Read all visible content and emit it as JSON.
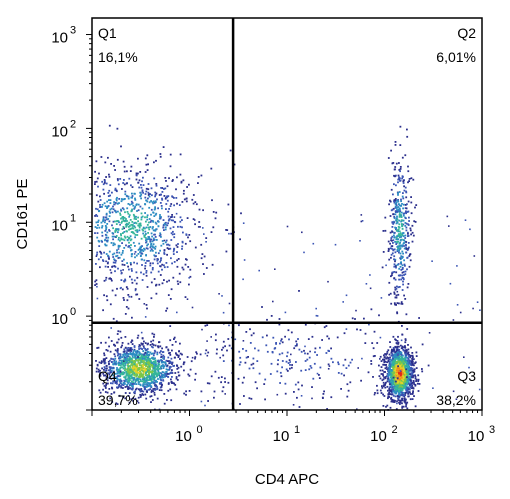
{
  "chart_data": {
    "type": "scatter",
    "xlabel": "CD4 APC",
    "ylabel": "CD161 PE",
    "x_scale": "log",
    "y_scale": "log",
    "xlim": [
      0.1,
      1000
    ],
    "ylim": [
      0.1,
      1500
    ],
    "x_ticks": [
      {
        "value": 1,
        "mant": "10",
        "exp": "0"
      },
      {
        "value": 10,
        "mant": "10",
        "exp": "1"
      },
      {
        "value": 100,
        "mant": "10",
        "exp": "2"
      },
      {
        "value": 1000,
        "mant": "10",
        "exp": "3"
      }
    ],
    "y_ticks": [
      {
        "value": 1,
        "mant": "10",
        "exp": "0"
      },
      {
        "value": 10,
        "mant": "10",
        "exp": "1"
      },
      {
        "value": 100,
        "mant": "10",
        "exp": "2"
      },
      {
        "value": 1000,
        "mant": "10",
        "exp": "3"
      }
    ],
    "gate": {
      "x": 2.8,
      "y": 0.85
    },
    "quadrants": [
      {
        "name": "Q1",
        "percent": "16,1%"
      },
      {
        "name": "Q2",
        "percent": "6,01%"
      },
      {
        "name": "Q3",
        "percent": "38,2%"
      },
      {
        "name": "Q4",
        "percent": "39,7%"
      }
    ],
    "density_colors": [
      "#2b2f8c",
      "#3b55b5",
      "#2c8cc2",
      "#35b59a",
      "#7cc64a",
      "#e6d22a",
      "#f08a1e",
      "#e0281a"
    ],
    "clusters": [
      {
        "cx": 0.25,
        "cy": 9,
        "sx": 0.35,
        "sy": 0.35,
        "count": 1100,
        "peak": 3
      },
      {
        "cx": 0.3,
        "cy": 0.28,
        "sx": 0.2,
        "sy": 0.14,
        "count": 1300,
        "peak": 5
      },
      {
        "cx": 140,
        "cy": 0.25,
        "sx": 0.07,
        "sy": 0.14,
        "count": 1400,
        "peak": 7
      },
      {
        "cx": 140,
        "cy": 8,
        "sx": 0.06,
        "sy": 0.4,
        "count": 420,
        "peak": 3
      },
      {
        "cx": 10,
        "cy": 0.35,
        "sx": 0.6,
        "sy": 0.25,
        "count": 260,
        "peak": 1
      }
    ]
  }
}
